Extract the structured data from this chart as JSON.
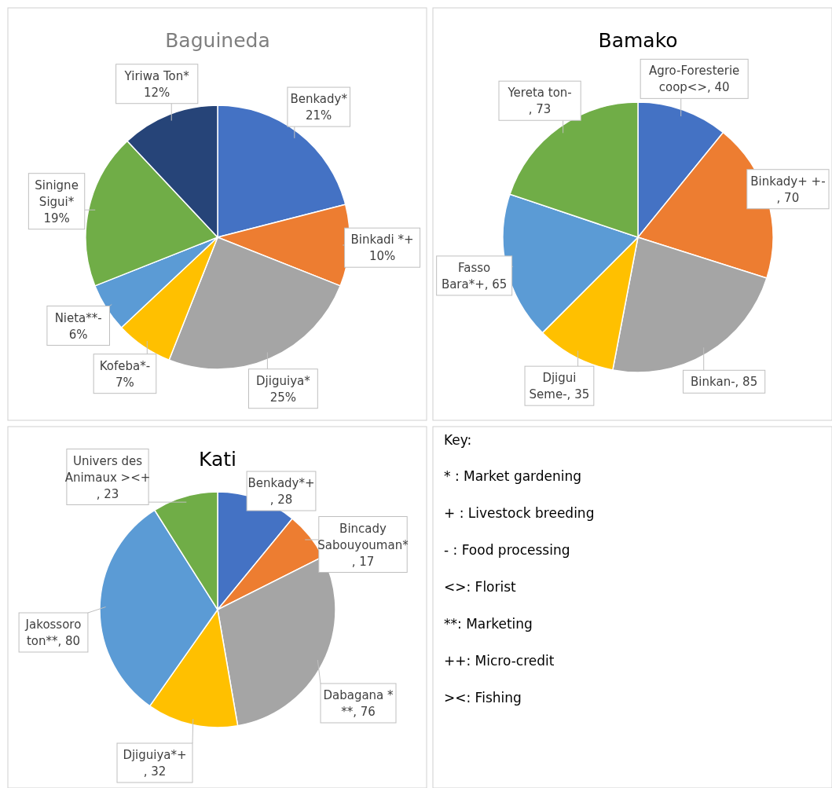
{
  "chart_data": [
    {
      "type": "pie",
      "title": "Baguineda",
      "categories": [
        "Benkady*",
        "Binkadi *+",
        "Djiguiya*",
        "Kofeba*-",
        "Nieta**-",
        "Sinigne Sigui*",
        "Yiriwa Ton*"
      ],
      "values": [
        21,
        10,
        25,
        7,
        6,
        19,
        12
      ],
      "colors": [
        "#4472c4",
        "#ed7d31",
        "#a5a5a5",
        "#ffc000",
        "#5b9bd5",
        "#70ad47",
        "#264478"
      ],
      "value_labels": [
        "21%",
        "10%",
        "25%",
        "7%",
        "6%",
        "19%",
        "12%"
      ]
    },
    {
      "type": "pie",
      "title": "Bamako",
      "categories": [
        "Agro-Foresterie coop<>",
        "Binkady+ +-",
        "Binkan-",
        "Djigui Seme-",
        "Fasso Bara*+",
        "Yereta ton-"
      ],
      "values": [
        40,
        70,
        85,
        35,
        65,
        73
      ],
      "colors": [
        "#4472c4",
        "#ed7d31",
        "#a5a5a5",
        "#ffc000",
        "#5b9bd5",
        "#70ad47"
      ],
      "value_labels": [
        ", 40",
        ", 70",
        ", 85",
        ", 35",
        ", 65",
        ", 73"
      ]
    },
    {
      "type": "pie",
      "title": "Kati",
      "categories": [
        "Benkady*+",
        "Bincady Sabouyouman*",
        "Dabagana * **",
        "Djiguiya*+",
        "Jakossoro ton**",
        "Univers des Animaux ><+"
      ],
      "values": [
        28,
        17,
        76,
        32,
        80,
        23
      ],
      "colors": [
        "#4472c4",
        "#ed7d31",
        "#a5a5a5",
        "#ffc000",
        "#5b9bd5",
        "#70ad47"
      ],
      "value_labels": [
        ", 28",
        ", 17",
        ", 76",
        ", 32",
        ", 80",
        ", 23"
      ]
    },
    {
      "type": "other",
      "title": "Key:",
      "annotations": [
        "* : Market gardening",
        "+ : Livestock breeding",
        "- : Food processing",
        "<>: Florist",
        "**: Marketing",
        "++: Micro-credit",
        "><: Fishing"
      ]
    }
  ]
}
